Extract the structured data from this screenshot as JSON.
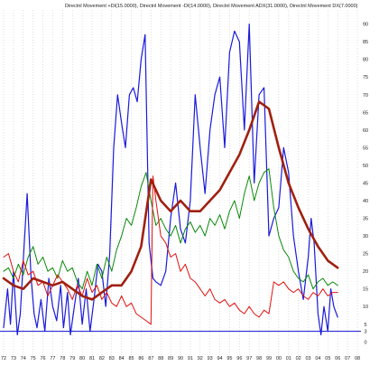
{
  "chart_data": {
    "type": "line",
    "title": "Directnl Movement +DI(15.0000), Directnl Movement -DI(14.0000), Directnl Movement ADX(31.0000), Directnl Movement DX(7.0000)",
    "xlabel": "",
    "ylabel": "",
    "categories": [
      "72",
      "73",
      "74",
      "75",
      "76",
      "77",
      "78",
      "79",
      "80",
      "81",
      "82",
      "83",
      "84",
      "85",
      "86",
      "87",
      "88",
      "89",
      "90",
      "91",
      "92",
      "93",
      "94",
      "95",
      "96",
      "97",
      "98",
      "99",
      "00",
      "01",
      "02",
      "03",
      "04",
      "05",
      "06",
      "07",
      "08"
    ],
    "yticks": [
      0,
      3,
      5,
      10,
      15,
      20,
      25,
      30,
      35,
      40,
      45,
      50,
      55,
      60,
      65,
      70,
      75,
      80,
      85,
      90
    ],
    "ylim": [
      -3.5,
      94
    ],
    "xlim": [
      72,
      108
    ],
    "reference_line": 3,
    "grid": true,
    "legend": "top",
    "series": [
      {
        "name": "DX",
        "color": "#1a1adc",
        "width": 1.2,
        "x": [
          72.0,
          72.4,
          72.7,
          73.0,
          73.4,
          73.7,
          74.1,
          74.4,
          74.8,
          75.1,
          75.4,
          75.8,
          76.2,
          76.6,
          77.0,
          77.4,
          77.8,
          78.1,
          78.5,
          78.8,
          79.2,
          79.6,
          80.0,
          80.4,
          80.8,
          81.2,
          81.6,
          82.0,
          82.4,
          82.8,
          83.2,
          83.6,
          84.0,
          84.4,
          84.8,
          85.2,
          85.6,
          86.0,
          86.4,
          86.8,
          87.2,
          87.5,
          88.0,
          88.5,
          89.0,
          89.5,
          90.0,
          90.5,
          91.0,
          91.5,
          92.0,
          92.5,
          93.0,
          93.5,
          94.0,
          94.5,
          95.0,
          95.5,
          96.0,
          96.5,
          97.0,
          97.5,
          98.0,
          98.5,
          99.0,
          99.5,
          100.0,
          100.5,
          101.0,
          101.5,
          102.0,
          102.5,
          103.0,
          103.3,
          103.6,
          104.0,
          104.3,
          104.6,
          105.0,
          105.3,
          105.6,
          106.0
        ],
        "values": [
          4,
          15,
          5,
          20,
          2,
          8,
          28,
          42,
          18,
          8,
          4,
          12,
          3,
          18,
          10,
          6,
          16,
          4,
          14,
          2,
          10,
          18,
          5,
          15,
          3,
          12,
          22,
          20,
          10,
          25,
          55,
          70,
          62,
          55,
          70,
          72,
          68,
          80,
          87,
          28,
          18,
          17,
          16,
          20,
          35,
          45,
          32,
          28,
          40,
          70,
          55,
          42,
          60,
          70,
          75,
          55,
          82,
          88,
          85,
          60,
          90,
          45,
          70,
          72,
          30,
          35,
          38,
          55,
          48,
          30,
          20,
          12,
          24,
          35,
          28,
          8,
          2,
          10,
          3,
          15,
          10,
          7
        ]
      },
      {
        "name": "+DI",
        "color": "#0a8a0a",
        "width": 1.0,
        "x": [
          72.0,
          72.5,
          73.0,
          73.5,
          74.0,
          74.5,
          75.0,
          75.5,
          76.0,
          76.5,
          77.0,
          77.5,
          78.0,
          78.5,
          79.0,
          79.5,
          80.0,
          80.5,
          81.0,
          81.5,
          82.0,
          82.5,
          83.0,
          83.5,
          84.0,
          84.5,
          85.0,
          85.5,
          86.0,
          86.5,
          87.0,
          87.5,
          88.0,
          88.5,
          89.0,
          89.5,
          90.0,
          90.5,
          91.0,
          91.5,
          92.0,
          92.5,
          93.0,
          93.5,
          94.0,
          94.5,
          95.0,
          95.5,
          96.0,
          96.5,
          97.0,
          97.5,
          98.0,
          98.5,
          99.0,
          99.5,
          100.0,
          100.5,
          101.0,
          101.5,
          102.0,
          102.5,
          103.0,
          103.5,
          104.0,
          104.5,
          105.0,
          105.5,
          106.0
        ],
        "values": [
          20,
          21,
          18,
          22,
          19,
          24,
          27,
          22,
          24,
          20,
          21,
          18,
          23,
          20,
          21,
          17,
          15,
          20,
          16,
          22,
          18,
          24,
          20,
          26,
          30,
          35,
          33,
          38,
          44,
          48,
          40,
          33,
          35,
          32,
          30,
          33,
          28,
          32,
          34,
          31,
          33,
          30,
          35,
          33,
          36,
          32,
          37,
          40,
          35,
          42,
          47,
          40,
          45,
          48,
          49,
          38,
          30,
          26,
          24,
          20,
          18,
          17,
          19,
          15,
          17,
          18,
          16,
          17,
          16
        ]
      },
      {
        "name": "-DI",
        "color": "#e01010",
        "width": 1.0,
        "x": [
          72.0,
          72.5,
          73.0,
          73.5,
          74.0,
          74.5,
          75.0,
          75.5,
          76.0,
          76.5,
          77.0,
          77.5,
          78.0,
          78.5,
          79.0,
          79.5,
          80.0,
          80.5,
          81.0,
          81.5,
          82.0,
          82.5,
          83.0,
          83.5,
          84.0,
          84.5,
          85.0,
          85.5,
          86.0,
          86.5,
          87.0,
          87.2,
          87.5,
          88.0,
          88.5,
          89.0,
          89.5,
          90.0,
          90.5,
          91.0,
          91.5,
          92.0,
          92.5,
          93.0,
          93.5,
          94.0,
          94.5,
          95.0,
          95.5,
          96.0,
          96.5,
          97.0,
          97.5,
          98.0,
          98.5,
          99.0,
          99.5,
          100.0,
          100.5,
          101.0,
          101.5,
          102.0,
          102.5,
          103.0,
          103.5,
          104.0,
          104.5,
          105.0,
          105.5,
          106.0
        ],
        "values": [
          24,
          25,
          20,
          17,
          23,
          19,
          20,
          16,
          17,
          13,
          16,
          19,
          17,
          15,
          12,
          16,
          13,
          18,
          14,
          16,
          12,
          14,
          11,
          10,
          13,
          10,
          11,
          8,
          7,
          6,
          5,
          47,
          40,
          30,
          28,
          24,
          25,
          20,
          22,
          18,
          17,
          15,
          13,
          15,
          12,
          11,
          12,
          10,
          11,
          9,
          8,
          10,
          8,
          7,
          9,
          8,
          17,
          16,
          17,
          15,
          14,
          15,
          13,
          12,
          14,
          13,
          15,
          13,
          14,
          14
        ]
      },
      {
        "name": "ADX",
        "color": "#a02010",
        "width": 2.6,
        "x": [
          72,
          73,
          74,
          75,
          76,
          77,
          78,
          79,
          80,
          81,
          82,
          83,
          84,
          85,
          86,
          87,
          88,
          89,
          90,
          91,
          92,
          93,
          94,
          95,
          96,
          97,
          98,
          98.5,
          99,
          100,
          101,
          102,
          103,
          104,
          105,
          106
        ],
        "values": [
          18,
          16,
          15,
          18,
          17,
          16,
          17,
          15,
          13,
          12,
          14,
          16,
          16,
          20,
          27,
          46,
          40,
          37,
          40,
          37,
          37,
          40,
          43,
          48,
          53,
          60,
          68,
          67,
          66,
          55,
          45,
          38,
          32,
          27,
          23,
          21
        ]
      }
    ]
  }
}
